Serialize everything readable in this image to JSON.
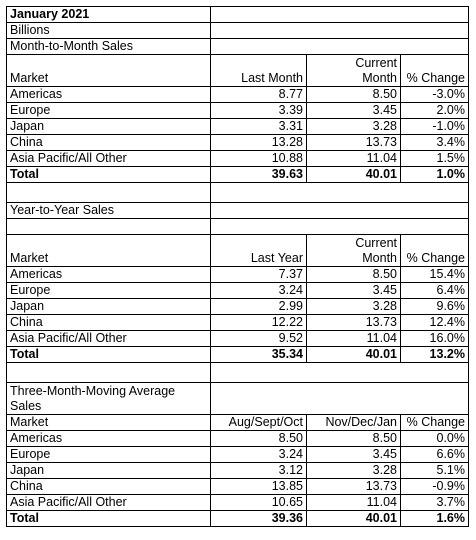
{
  "title": "January 2021",
  "unit": "Billions",
  "sections": [
    {
      "heading": "Month-to-Month Sales",
      "col_headers": {
        "market": "Market",
        "prior": "Last Month",
        "current_top": "Current",
        "current_bottom": "Month",
        "change": "% Change"
      },
      "rows": [
        {
          "market": "Americas",
          "prior": "8.77",
          "current": "8.50",
          "change": "-3.0%"
        },
        {
          "market": "Europe",
          "prior": "3.39",
          "current": "3.45",
          "change": "2.0%"
        },
        {
          "market": "Japan",
          "prior": "3.31",
          "current": "3.28",
          "change": "-1.0%"
        },
        {
          "market": "China",
          "prior": "13.28",
          "current": "13.73",
          "change": "3.4%"
        },
        {
          "market": "Asia Pacific/All Other",
          "prior": "10.88",
          "current": "11.04",
          "change": "1.5%"
        }
      ],
      "total": {
        "market": "Total",
        "prior": "39.63",
        "current": "40.01",
        "change": "1.0%"
      }
    },
    {
      "heading": "Year-to-Year Sales",
      "col_headers": {
        "market": "Market",
        "prior": "Last Year",
        "current_top": "Current",
        "current_bottom": "Month",
        "change": "% Change"
      },
      "rows": [
        {
          "market": "Americas",
          "prior": "7.37",
          "current": "8.50",
          "change": "15.4%"
        },
        {
          "market": "Europe",
          "prior": "3.24",
          "current": "3.45",
          "change": "6.4%"
        },
        {
          "market": "Japan",
          "prior": "2.99",
          "current": "3.28",
          "change": "9.6%"
        },
        {
          "market": "China",
          "prior": "12.22",
          "current": "13.73",
          "change": "12.4%"
        },
        {
          "market": "Asia Pacific/All Other",
          "prior": "9.52",
          "current": "11.04",
          "change": "16.0%"
        }
      ],
      "total": {
        "market": "Total",
        "prior": "35.34",
        "current": "40.01",
        "change": "13.2%"
      }
    },
    {
      "heading": "Three-Month-Moving Average Sales",
      "col_headers": {
        "market": "Market",
        "prior": "Aug/Sept/Oct",
        "current": "Nov/Dec/Jan",
        "change": "% Change"
      },
      "rows": [
        {
          "market": "Americas",
          "prior": "8.50",
          "current": "8.50",
          "change": "0.0%"
        },
        {
          "market": "Europe",
          "prior": "3.24",
          "current": "3.45",
          "change": "6.6%"
        },
        {
          "market": "Japan",
          "prior": "3.12",
          "current": "3.28",
          "change": "5.1%"
        },
        {
          "market": "China",
          "prior": "13.85",
          "current": "13.73",
          "change": "-0.9%"
        },
        {
          "market": "Asia Pacific/All Other",
          "prior": "10.65",
          "current": "11.04",
          "change": "3.7%"
        }
      ],
      "total": {
        "market": "Total",
        "prior": "39.36",
        "current": "40.01",
        "change": "1.6%"
      }
    }
  ]
}
